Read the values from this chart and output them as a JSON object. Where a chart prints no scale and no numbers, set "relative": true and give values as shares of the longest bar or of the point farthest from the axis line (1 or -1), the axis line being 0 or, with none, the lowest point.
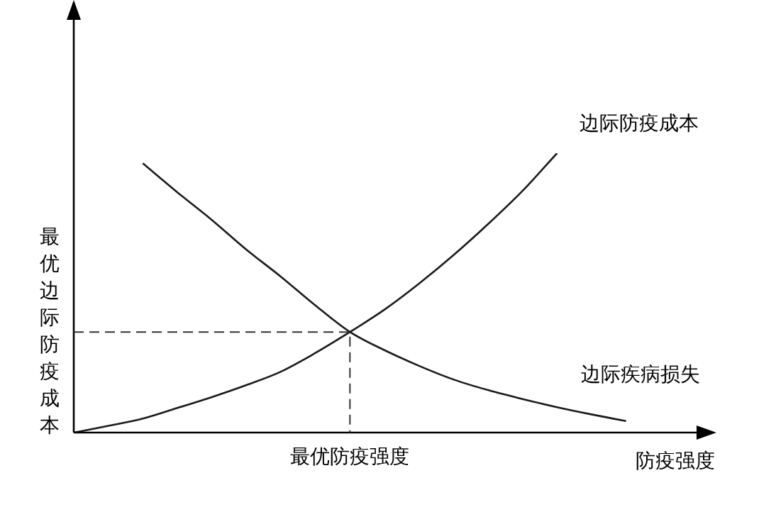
{
  "chart_data": {
    "type": "line",
    "relative": true,
    "xlabel": "防疫强度",
    "categories": [
      null,
      null,
      null,
      null,
      null,
      null,
      null,
      null,
      null,
      null,
      null,
      null,
      null,
      null,
      null,
      null,
      null,
      null,
      null
    ],
    "series": [
      {
        "name": "边际防疫成本",
        "color": "#1a1a1a",
        "values": [
          0,
          0.024,
          0.05,
          0.088,
          0.127,
          0.17,
          0.218,
          0.285,
          0.36,
          0.44,
          0.533,
          0.635,
          0.746,
          0.865,
          1.0,
          null,
          null,
          null,
          null
        ]
      },
      {
        "name": "边际疾病损失",
        "color": "#1a1a1a",
        "values": [
          null,
          null,
          0.964,
          0.86,
          0.761,
          0.655,
          0.558,
          0.455,
          0.36,
          0.295,
          0.239,
          0.19,
          0.152,
          0.12,
          0.091,
          0.065,
          0.041,
          null,
          null
        ]
      }
    ],
    "annotations": [
      "最优防疫强度"
    ],
    "ref_lines": [
      {
        "axis": "y",
        "value": 0.36,
        "label": "最优边际防疫成本",
        "line_style": "dashed",
        "color": "#333333"
      }
    ],
    "tick_labels": false,
    "legend": false,
    "marker": "none",
    "line_style": "solid"
  }
}
